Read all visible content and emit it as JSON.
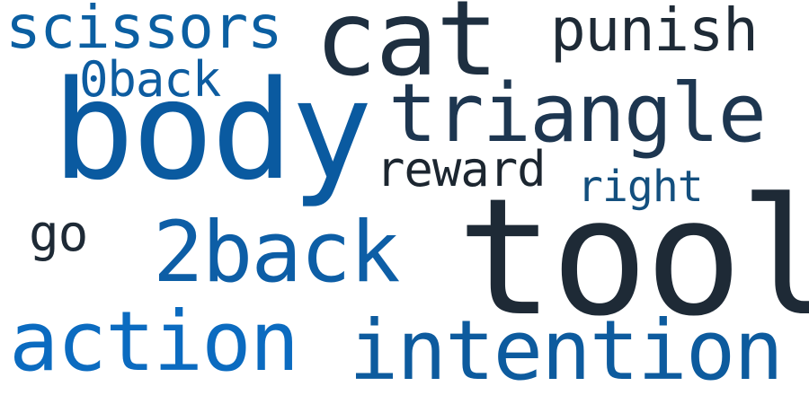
{
  "words": {
    "scissors": {
      "text": "scissors",
      "color": "#0b5fa2"
    },
    "cat": {
      "text": "cat",
      "color": "#1e2f40"
    },
    "punish": {
      "text": "punish",
      "color": "#1e2a36"
    },
    "zero_back": {
      "text": "0back",
      "color": "#0d5ca0"
    },
    "body": {
      "text": "body",
      "color": "#0a5aa0"
    },
    "triangle": {
      "text": "triangle",
      "color": "#1d3650"
    },
    "reward": {
      "text": "reward",
      "color": "#1c2630"
    },
    "right": {
      "text": "right",
      "color": "#134f7e"
    },
    "go": {
      "text": "go",
      "color": "#1e2a36"
    },
    "two_back": {
      "text": "2back",
      "color": "#0d5ea6"
    },
    "tool": {
      "text": "tool",
      "color": "#1e2a36"
    },
    "action": {
      "text": "action",
      "color": "#0b6bc0"
    },
    "intention": {
      "text": "intention",
      "color": "#0d5b9e"
    }
  }
}
